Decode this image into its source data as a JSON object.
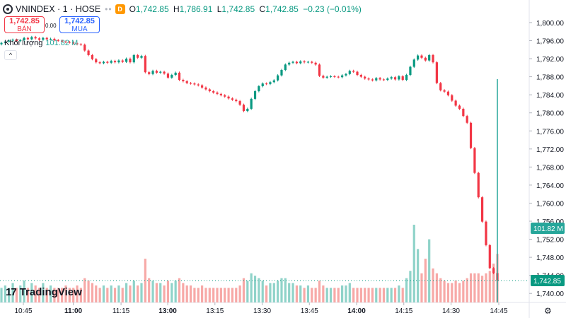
{
  "header": {
    "symbol": "VNINDEX · 1 · HOSE",
    "badge": "D",
    "o_label": "O",
    "o": "1,742.85",
    "h_label": "H",
    "h": "1,786.91",
    "l_label": "L",
    "l": "1,742.85",
    "c_label": "C",
    "c": "1,742.85",
    "change": "−0.23 (−0.01%)"
  },
  "trade": {
    "sell_price": "1,742.85",
    "sell_label": "BÁN",
    "spread": "0.00",
    "buy_price": "1,742.85",
    "buy_label": "MUA"
  },
  "volume": {
    "label": "Khối lượng",
    "value": "101.82 M"
  },
  "branding": {
    "name": "TradingView"
  },
  "colors": {
    "up": "#089981",
    "down": "#f23645",
    "vol_up": "#8fd3c9",
    "vol_down": "#f7a9a7"
  },
  "chart_data": {
    "type": "candlestick",
    "y_range": [
      1738,
      1805
    ],
    "y_ticks": [
      "1,740.00",
      "1,744.00",
      "1,748.00",
      "1,752.00",
      "1,756.00",
      "1,760.00",
      "1,764.00",
      "1,768.00",
      "1,772.00",
      "1,776.00",
      "1,780.00",
      "1,784.00",
      "1,788.00",
      "1,792.00",
      "1,796.00",
      "1,800.00"
    ],
    "x_ticks": [
      {
        "label": "10:45",
        "pos": 0.0,
        "bold": false
      },
      {
        "label": "11:00",
        "pos": 0.092,
        "bold": true
      },
      {
        "label": "11:15",
        "pos": 0.18,
        "bold": false
      },
      {
        "label": "13:00",
        "pos": 0.266,
        "bold": true
      },
      {
        "label": "13:15",
        "pos": 0.353,
        "bold": false
      },
      {
        "label": "13:30",
        "pos": 0.44,
        "bold": false
      },
      {
        "label": "13:45",
        "pos": 0.527,
        "bold": false
      },
      {
        "label": "14:00",
        "pos": 0.614,
        "bold": true
      },
      {
        "label": "14:15",
        "pos": 0.701,
        "bold": false
      },
      {
        "label": "14:30",
        "pos": 0.788,
        "bold": false
      },
      {
        "label": "14:45",
        "pos": 0.876,
        "bold": false
      }
    ],
    "price_label": "1,742.85",
    "volume_label": "101.82 M",
    "closes": [
      1795.5,
      1795.8,
      1796.0,
      1796.2,
      1795.9,
      1796.1,
      1796.6,
      1796.3,
      1796.8,
      1796.5,
      1796.2,
      1796.6,
      1796.3,
      1796.4,
      1796.1,
      1796.0,
      1795.8,
      1795.7,
      1795.6,
      1795.4,
      1795.2,
      1795.1,
      1793.8,
      1792.8,
      1791.9,
      1791.2,
      1791.0,
      1791.3,
      1791.1,
      1791.5,
      1791.2,
      1791.6,
      1791.3,
      1792.0,
      1791.2,
      1792.8,
      1792.2,
      1792.6,
      1789.0,
      1788.6,
      1789.3,
      1788.9,
      1789.1,
      1788.7,
      1787.8,
      1788.4,
      1788.9,
      1787.3,
      1787.0,
      1786.6,
      1786.5,
      1786.3,
      1786.1,
      1785.6,
      1785.2,
      1784.8,
      1784.5,
      1784.2,
      1783.9,
      1783.6,
      1783.2,
      1782.9,
      1782.6,
      1781.8,
      1780.4,
      1780.9,
      1783.1,
      1784.8,
      1785.9,
      1786.5,
      1786.4,
      1786.8,
      1787.2,
      1788.3,
      1789.5,
      1790.7,
      1791.1,
      1791.3,
      1791.0,
      1791.4,
      1791.2,
      1791.3,
      1791.1,
      1790.7,
      1788.2,
      1787.8,
      1788.0,
      1788.1,
      1788.0,
      1787.9,
      1788.3,
      1788.6,
      1789.3,
      1789.1,
      1788.4,
      1788.0,
      1787.6,
      1787.4,
      1787.2,
      1787.7,
      1787.4,
      1787.3,
      1787.6,
      1787.9,
      1787.4,
      1788.1,
      1787.3,
      1788.4,
      1790.2,
      1791.8,
      1792.7,
      1792.2,
      1791.6,
      1792.8,
      1791.2,
      1786.6,
      1785.0,
      1784.7,
      1783.9,
      1782.7,
      1781.6,
      1780.9,
      1779.3,
      1777.8,
      1772.2,
      1766.7,
      1761.3,
      1755.9,
      1750.7,
      1745.6,
      1744.5,
      1742.85
    ],
    "volumes": [
      0.3,
      0.35,
      0.3,
      0.4,
      0.3,
      0.35,
      0.45,
      0.3,
      0.4,
      0.35,
      0.3,
      0.4,
      0.3,
      0.35,
      0.3,
      0.3,
      0.3,
      0.35,
      0.3,
      0.3,
      0.35,
      0.3,
      0.5,
      0.45,
      0.4,
      0.35,
      0.3,
      0.35,
      0.3,
      0.35,
      0.3,
      0.35,
      0.3,
      0.4,
      0.35,
      0.45,
      0.35,
      0.4,
      0.9,
      0.5,
      0.45,
      0.4,
      0.4,
      0.35,
      0.45,
      0.4,
      0.45,
      0.5,
      0.4,
      0.35,
      0.35,
      0.3,
      0.3,
      0.35,
      0.3,
      0.3,
      0.3,
      0.3,
      0.3,
      0.3,
      0.3,
      0.3,
      0.3,
      0.35,
      0.5,
      0.45,
      0.6,
      0.55,
      0.5,
      0.45,
      0.35,
      0.4,
      0.4,
      0.45,
      0.5,
      0.5,
      0.4,
      0.4,
      0.35,
      0.35,
      0.3,
      0.35,
      0.3,
      0.3,
      0.45,
      0.35,
      0.3,
      0.3,
      0.3,
      0.3,
      0.35,
      0.35,
      0.4,
      0.3,
      0.3,
      0.3,
      0.3,
      0.3,
      0.3,
      0.3,
      0.3,
      0.3,
      0.3,
      0.3,
      0.3,
      0.35,
      0.3,
      0.5,
      0.65,
      1.6,
      1.1,
      0.6,
      0.9,
      1.3,
      0.7,
      0.6,
      0.5,
      0.45,
      0.4,
      0.4,
      0.45,
      0.4,
      0.45,
      0.5,
      0.6,
      0.6,
      0.6,
      0.55,
      0.6,
      0.65,
      0.8,
      1.0
    ]
  }
}
